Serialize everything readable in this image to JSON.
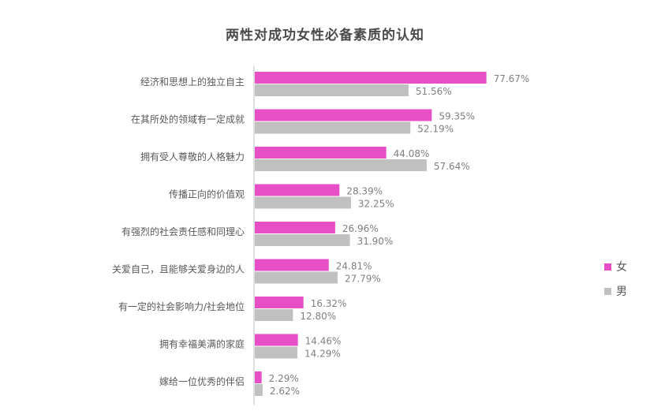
{
  "chart_data": {
    "type": "bar",
    "orientation": "horizontal",
    "title": "两性对成功女性必备素质的认知",
    "categories": [
      "经济和思想上的独立自主",
      "在其所处的领域有一定成就",
      "拥有受人尊敬的人格魅力",
      "传播正向的价值观",
      "有强烈的社会责任感和同理心",
      "关爱自己，且能够关爱身边的人",
      "有一定的社会影响力/社会地位",
      "拥有幸福美满的家庭",
      "嫁给一位优秀的伴侣"
    ],
    "series": [
      {
        "name": "女",
        "color": "#e64fc6",
        "values": [
          77.67,
          59.35,
          44.08,
          28.39,
          26.96,
          24.81,
          16.32,
          14.46,
          2.29
        ],
        "labels": [
          "77.67%",
          "59.35%",
          "44.08%",
          "28.39%",
          "26.96%",
          "24.81%",
          "16.32%",
          "14.46%",
          "2.29%"
        ]
      },
      {
        "name": "男",
        "color": "#c0c0c0",
        "values": [
          51.56,
          52.19,
          57.64,
          32.25,
          31.9,
          27.79,
          12.8,
          14.29,
          2.62
        ],
        "labels": [
          "51.56%",
          "52.19%",
          "57.64%",
          "32.25%",
          "31.90%",
          "27.79%",
          "12.80%",
          "14.29%",
          "2.62%"
        ]
      }
    ],
    "xlim": [
      0,
      100
    ],
    "unit": "%",
    "grid": false,
    "legend_position": "right"
  }
}
